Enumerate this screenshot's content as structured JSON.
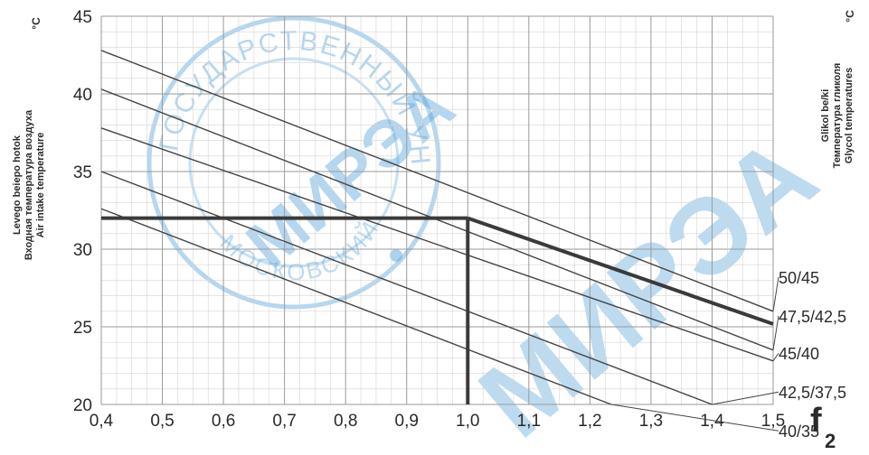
{
  "chart_data": {
    "type": "line",
    "x": [
      0.4,
      1.5
    ],
    "xticks": [
      "0,4",
      "0,5",
      "0,6",
      "0,7",
      "0,8",
      "0,9",
      "1,0",
      "1,1",
      "1,2",
      "1,3",
      "1,4",
      "1,5"
    ],
    "xtick_values": [
      0.4,
      0.5,
      0.6,
      0.7,
      0.8,
      0.9,
      1.0,
      1.1,
      1.2,
      1.3,
      1.4,
      1.5
    ],
    "yticks": [
      "20",
      "25",
      "30",
      "35",
      "40",
      "45"
    ],
    "ytick_values": [
      20,
      25,
      30,
      35,
      40,
      45
    ],
    "xlim": [
      0.4,
      1.5
    ],
    "ylim": [
      20,
      45
    ],
    "xlabel": "f",
    "xlabel_sub": "2",
    "ylabel_lines": [
      "Levego beiepo hotok",
      "Входная температура воздуха",
      "Air intake temperature"
    ],
    "ylabel_unit": "°C",
    "right_label_lines": [
      "Glikol be/ki",
      "Температура гликоля",
      "Glycol temperatures"
    ],
    "right_label_unit": "°C",
    "grid": true,
    "series": [
      {
        "name": "50/45",
        "values": [
          42.8,
          26.0
        ],
        "highlight": false
      },
      {
        "name": "47,5/42,5",
        "values": [
          40.3,
          23.5
        ],
        "highlight": false
      },
      {
        "name": "45/40",
        "values": [
          37.8,
          22.8
        ],
        "highlight": true
      },
      {
        "name": "42,5/37,5",
        "values": [
          35.0,
          18.5
        ],
        "highlight": false
      },
      {
        "name": "40/35",
        "values": [
          32.6,
          16.0
        ],
        "highlight": false
      }
    ],
    "example": {
      "x": 1.0,
      "y": 32.0
    },
    "colors": {
      "grid": "#9a9a9a",
      "line": "#444444",
      "highlight": "#3a3a3a",
      "text": "#2a2a2a",
      "watermark": "#5aa6dc"
    }
  },
  "watermark": {
    "arc_text": "ГОСУДАРСТВЕННЫЙ УНИВЕРСИТЕТ",
    "bottom_text": "МОСКОВСКИЙ",
    "center_text": "МИРЭА",
    "corner_text": "МИРЭА"
  }
}
